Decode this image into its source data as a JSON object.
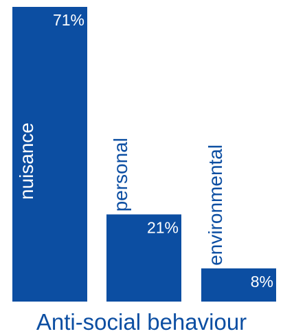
{
  "chart_data": {
    "type": "bar",
    "title": "Anti-social behaviour",
    "categories": [
      "nuisance",
      "personal",
      "environmental"
    ],
    "values": [
      71,
      21,
      8
    ],
    "value_labels": [
      "71%",
      "21%",
      "8%"
    ],
    "unit": "%",
    "ylim": [
      0,
      71
    ],
    "grid": false,
    "legend": "none",
    "bar_color": "#0c4ea2",
    "background_color": "#ffffff"
  }
}
